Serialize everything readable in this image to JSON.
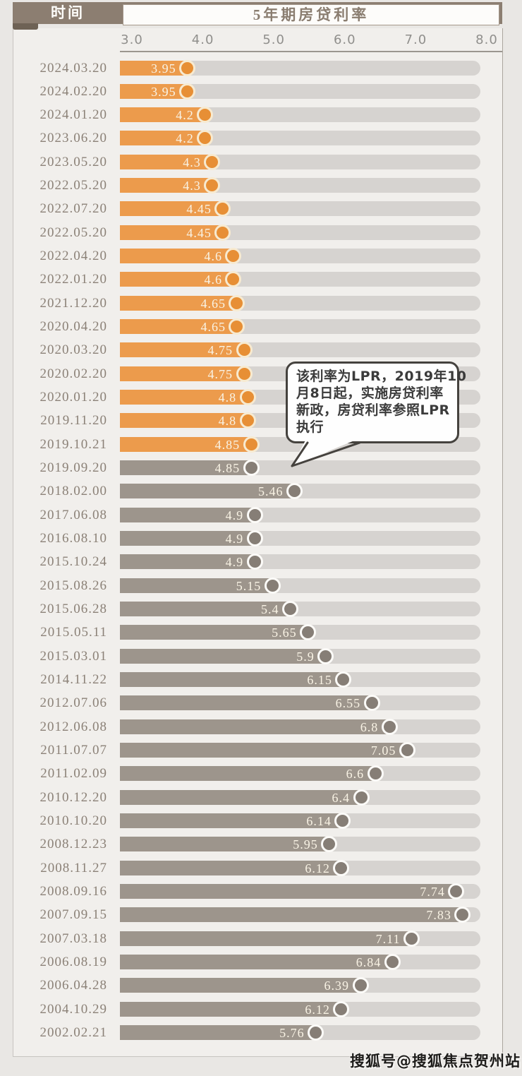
{
  "header": {
    "time_column_label": "时间",
    "title": "5年期房贷利率"
  },
  "colors": {
    "header_band": "#8c7e71",
    "lpr_bar": "#ec9b4c",
    "lpr_marker": "#e78f35",
    "lpr_marker_ring": "#f7ead0",
    "benchmark_bar": "#9d958c",
    "benchmark_marker": "#867e76",
    "benchmark_marker_ring": "#fcfbf8",
    "track": "#d6d3d0"
  },
  "chart_data": {
    "type": "bar",
    "orientation": "horizontal",
    "title": "5年期房贷利率",
    "x_axis": {
      "tick_labels": [
        "3.0",
        "4.0",
        "5.0",
        "6.0",
        "7.0",
        "8.0"
      ],
      "range": [
        3.0,
        8.0
      ],
      "grid": false
    },
    "categories": [
      "2024.03.20",
      "2024.02.20",
      "2024.01.20",
      "2023.06.20",
      "2023.05.20",
      "2022.05.20",
      "2022.07.20",
      "2022.05.20",
      "2022.04.20",
      "2022.01.20",
      "2021.12.20",
      "2020.04.20",
      "2020.03.20",
      "2020.02.20",
      "2020.01.20",
      "2019.11.20",
      "2019.10.21",
      "2019.09.20",
      "2018.02.00",
      "2017.06.08",
      "2016.08.10",
      "2015.10.24",
      "2015.08.26",
      "2015.06.28",
      "2015.05.11",
      "2015.03.01",
      "2014.11.22",
      "2012.07.06",
      "2012.06.08",
      "2011.07.07",
      "2011.02.09",
      "2010.12.20",
      "2010.10.20",
      "2008.12.23",
      "2008.11.27",
      "2008.09.16",
      "2007.09.15",
      "2007.03.18",
      "2006.08.19",
      "2006.04.28",
      "2004.10.29",
      "2002.02.21"
    ],
    "values": [
      3.95,
      3.95,
      4.2,
      4.2,
      4.3,
      4.3,
      4.45,
      4.45,
      4.6,
      4.6,
      4.65,
      4.65,
      4.75,
      4.75,
      4.8,
      4.8,
      4.85,
      4.85,
      5.46,
      4.9,
      4.9,
      4.9,
      5.15,
      5.4,
      5.65,
      5.9,
      6.15,
      6.55,
      6.8,
      7.05,
      6.6,
      6.4,
      6.14,
      5.95,
      6.12,
      7.74,
      7.83,
      7.11,
      6.84,
      6.39,
      6.12,
      5.76
    ],
    "rows": [
      {
        "date": "2024.03.20",
        "rate": "3.95",
        "value": 3.95,
        "period": "lpr"
      },
      {
        "date": "2024.02.20",
        "rate": "3.95",
        "value": 3.95,
        "period": "lpr"
      },
      {
        "date": "2024.01.20",
        "rate": "4.2",
        "value": 4.2,
        "period": "lpr"
      },
      {
        "date": "2023.06.20",
        "rate": "4.2",
        "value": 4.2,
        "period": "lpr"
      },
      {
        "date": "2023.05.20",
        "rate": "4.3",
        "value": 4.3,
        "period": "lpr"
      },
      {
        "date": "2022.05.20",
        "rate": "4.3",
        "value": 4.3,
        "period": "lpr"
      },
      {
        "date": "2022.07.20",
        "rate": "4.45",
        "value": 4.45,
        "period": "lpr"
      },
      {
        "date": "2022.05.20",
        "rate": "4.45",
        "value": 4.45,
        "period": "lpr"
      },
      {
        "date": "2022.04.20",
        "rate": "4.6",
        "value": 4.6,
        "period": "lpr"
      },
      {
        "date": "2022.01.20",
        "rate": "4.6",
        "value": 4.6,
        "period": "lpr"
      },
      {
        "date": "2021.12.20",
        "rate": "4.65",
        "value": 4.65,
        "period": "lpr"
      },
      {
        "date": "2020.04.20",
        "rate": "4.65",
        "value": 4.65,
        "period": "lpr"
      },
      {
        "date": "2020.03.20",
        "rate": "4.75",
        "value": 4.75,
        "period": "lpr"
      },
      {
        "date": "2020.02.20",
        "rate": "4.75",
        "value": 4.75,
        "period": "lpr"
      },
      {
        "date": "2020.01.20",
        "rate": "4.8",
        "value": 4.8,
        "period": "lpr"
      },
      {
        "date": "2019.11.20",
        "rate": "4.8",
        "value": 4.8,
        "period": "lpr"
      },
      {
        "date": "2019.10.21",
        "rate": "4.85",
        "value": 4.85,
        "period": "lpr"
      },
      {
        "date": "2019.09.20",
        "rate": "4.85",
        "value": 4.85,
        "period": "benchmark"
      },
      {
        "date": "2018.02.00",
        "rate": "5.46",
        "value": 5.46,
        "period": "benchmark"
      },
      {
        "date": "2017.06.08",
        "rate": "4.9",
        "value": 4.9,
        "period": "benchmark"
      },
      {
        "date": "2016.08.10",
        "rate": "4.9",
        "value": 4.9,
        "period": "benchmark"
      },
      {
        "date": "2015.10.24",
        "rate": "4.9",
        "value": 4.9,
        "period": "benchmark"
      },
      {
        "date": "2015.08.26",
        "rate": "5.15",
        "value": 5.15,
        "period": "benchmark"
      },
      {
        "date": "2015.06.28",
        "rate": "5.4",
        "value": 5.4,
        "period": "benchmark"
      },
      {
        "date": "2015.05.11",
        "rate": "5.65",
        "value": 5.65,
        "period": "benchmark"
      },
      {
        "date": "2015.03.01",
        "rate": "5.9",
        "value": 5.9,
        "period": "benchmark"
      },
      {
        "date": "2014.11.22",
        "rate": "6.15",
        "value": 6.15,
        "period": "benchmark"
      },
      {
        "date": "2012.07.06",
        "rate": "6.55",
        "value": 6.55,
        "period": "benchmark"
      },
      {
        "date": "2012.06.08",
        "rate": "6.8",
        "value": 6.8,
        "period": "benchmark"
      },
      {
        "date": "2011.07.07",
        "rate": "7.05",
        "value": 7.05,
        "period": "benchmark"
      },
      {
        "date": "2011.02.09",
        "rate": "6.6",
        "value": 6.6,
        "period": "benchmark"
      },
      {
        "date": "2010.12.20",
        "rate": "6.4",
        "value": 6.4,
        "period": "benchmark"
      },
      {
        "date": "2010.10.20",
        "rate": "6.14",
        "value": 6.14,
        "period": "benchmark"
      },
      {
        "date": "2008.12.23",
        "rate": "5.95",
        "value": 5.95,
        "period": "benchmark"
      },
      {
        "date": "2008.11.27",
        "rate": "6.12",
        "value": 6.12,
        "period": "benchmark"
      },
      {
        "date": "2008.09.16",
        "rate": "7.74",
        "value": 7.74,
        "period": "benchmark"
      },
      {
        "date": "2007.09.15",
        "rate": "7.83",
        "value": 7.83,
        "period": "benchmark"
      },
      {
        "date": "2007.03.18",
        "rate": "7.11",
        "value": 7.11,
        "period": "benchmark"
      },
      {
        "date": "2006.08.19",
        "rate": "6.84",
        "value": 6.84,
        "period": "benchmark"
      },
      {
        "date": "2006.04.28",
        "rate": "6.39",
        "value": 6.39,
        "period": "benchmark"
      },
      {
        "date": "2004.10.29",
        "rate": "6.12",
        "value": 6.12,
        "period": "benchmark"
      },
      {
        "date": "2002.02.21",
        "rate": "5.76",
        "value": 5.76,
        "period": "benchmark"
      }
    ]
  },
  "annotation": {
    "full_text": "该利率为LPR，2019年10月8日起，实施房贷利率新政，房贷利率参照LPR执行",
    "lines": [
      "该利率为LPR，2019年10",
      "月8日起，实施房贷利率",
      "新政，房贷利率参照LPR",
      "执行"
    ]
  },
  "watermark": {
    "text": "搜狐号@搜狐焦点贺州站"
  }
}
